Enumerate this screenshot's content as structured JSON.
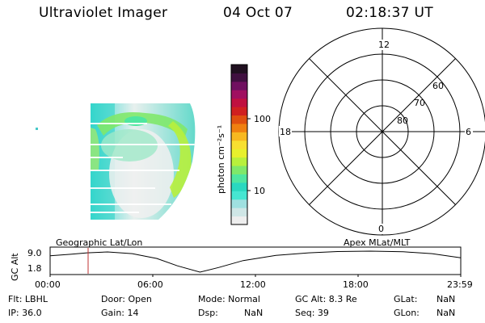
{
  "header": {
    "title": "Ultraviolet Imager",
    "date": "04 Oct 07",
    "time": "02:18:37 UT"
  },
  "colorbar": {
    "unit_label": "photon cm⁻²s⁻¹",
    "ticks": [
      {
        "value": 100,
        "label": "100"
      },
      {
        "value": 10,
        "label": "10"
      }
    ],
    "scale": "log",
    "colors": [
      "#eeeeee",
      "#cfe6e6",
      "#9fe0e0",
      "#46e6d2",
      "#2ad8c0",
      "#4fe6a0",
      "#7fe86a",
      "#b8f03c",
      "#e8f02c",
      "#f8e030",
      "#f8b820",
      "#f08010",
      "#e05010",
      "#d02020",
      "#c01040",
      "#a01060",
      "#701060",
      "#401040",
      "#201020"
    ]
  },
  "polar": {
    "mlt_labels": {
      "top": "12",
      "left": "18",
      "right": "6",
      "bottom": "0"
    },
    "lat_labels": [
      "60",
      "70",
      "80"
    ]
  },
  "timeline": {
    "ylabel": "GC Alt",
    "y_ticks": [
      "9.0",
      "1.8"
    ],
    "left_label": "Geographic Lat/Lon",
    "right_label": "Apex MLat/MLT",
    "x_ticks": [
      "00:00",
      "06:00",
      "12:00",
      "18:00",
      "23:59"
    ],
    "marker_time": "02:18"
  },
  "info": {
    "flt": "Flt: LBHL",
    "ip": "IP: 36.0",
    "door": "Door: Open",
    "gain": "Gain: 14",
    "mode": "Mode: Normal",
    "dsp": "Dsp:",
    "dsp_val": "NaN",
    "gcalt": "GC Alt: 8.3 Re",
    "seq": "Seq: 39",
    "glat": "GLat:",
    "glat_val": "NaN",
    "glon": "GLon:",
    "glon_val": "NaN"
  },
  "colors": {
    "marker": "#c03030",
    "curve": "#000000"
  }
}
